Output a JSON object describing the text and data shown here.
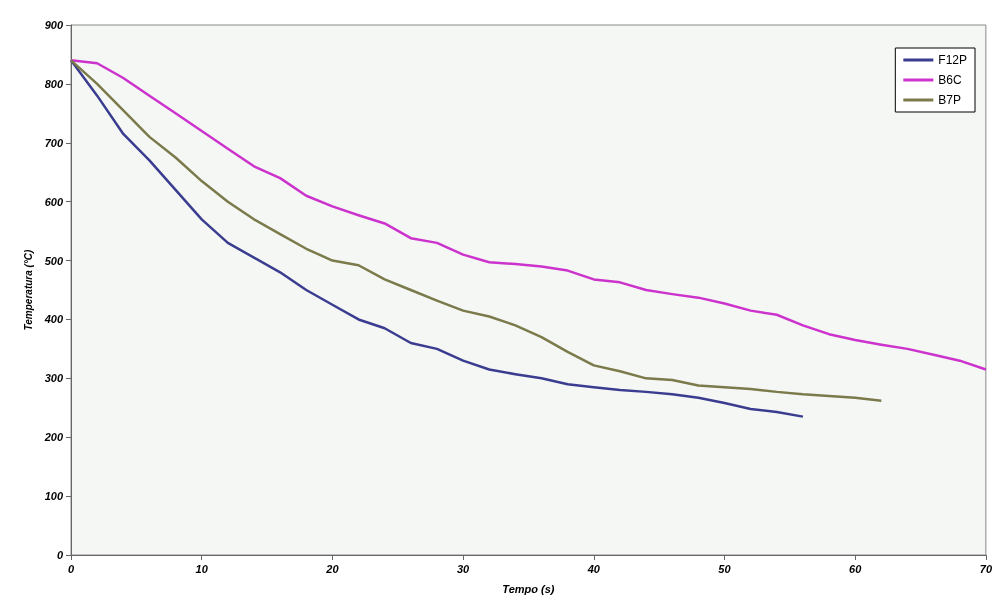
{
  "chart_data": {
    "type": "line",
    "xlabel": "Tempo (s)",
    "ylabel": "Temperatura (°C)",
    "xlim": [
      0,
      70
    ],
    "xticks": [
      0,
      10,
      20,
      30,
      40,
      50,
      60,
      70
    ],
    "ylim": [
      0,
      900
    ],
    "yticks": [
      0,
      100,
      200,
      300,
      400,
      500,
      600,
      700,
      800,
      900
    ],
    "grid": false,
    "legend": "top right",
    "marker": "none",
    "line_style": "solid",
    "series": [
      {
        "name": "F12P",
        "color": "#3a3d8f",
        "x": [
          0,
          2,
          4,
          6,
          8,
          10,
          12,
          14,
          16,
          18,
          20,
          22,
          24,
          26,
          28,
          30,
          32,
          34,
          36,
          38,
          40,
          42,
          44,
          46,
          48,
          50,
          52,
          54,
          56
        ],
        "values": [
          840,
          780,
          715,
          670,
          620,
          570,
          530,
          505,
          480,
          450,
          425,
          400,
          385,
          360,
          350,
          330,
          315,
          307,
          300,
          290,
          285,
          280,
          277,
          273,
          267,
          258,
          248,
          243,
          235
        ]
      },
      {
        "name": "B6C",
        "color": "#cc33cc",
        "x": [
          0,
          2,
          4,
          6,
          8,
          10,
          12,
          14,
          16,
          18,
          20,
          22,
          24,
          26,
          28,
          30,
          32,
          34,
          36,
          38,
          40,
          42,
          44,
          46,
          48,
          50,
          52,
          54,
          56,
          58,
          60,
          62,
          64,
          66,
          68,
          70
        ],
        "values": [
          840,
          835,
          810,
          780,
          750,
          720,
          690,
          660,
          640,
          610,
          592,
          577,
          563,
          538,
          530,
          510,
          497,
          494,
          490,
          483,
          468,
          463,
          450,
          443,
          437,
          427,
          415,
          408,
          390,
          375,
          365,
          357,
          350,
          340,
          330,
          315
        ]
      },
      {
        "name": "B7P",
        "color": "#7a7a4a",
        "x": [
          0,
          2,
          4,
          6,
          8,
          10,
          12,
          14,
          16,
          18,
          20,
          22,
          24,
          26,
          28,
          30,
          32,
          34,
          36,
          38,
          40,
          42,
          44,
          46,
          48,
          50,
          52,
          54,
          56,
          58,
          60,
          62
        ],
        "values": [
          840,
          800,
          755,
          710,
          675,
          635,
          600,
          570,
          545,
          520,
          500,
          492,
          468,
          450,
          432,
          415,
          405,
          390,
          370,
          345,
          322,
          312,
          300,
          297,
          288,
          285,
          282,
          277,
          273,
          270,
          267,
          262
        ]
      }
    ]
  }
}
